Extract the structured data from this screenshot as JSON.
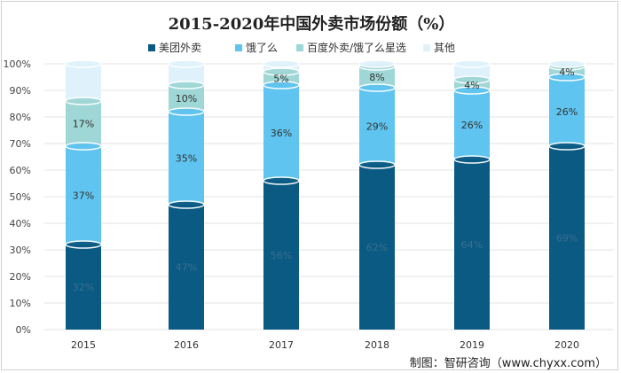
{
  "chart_data": {
    "type": "bar",
    "stacked": true,
    "title": "2015-2020年中国外卖市场份额（%）",
    "categories": [
      "2015",
      "2016",
      "2017",
      "2018",
      "2019",
      "2020"
    ],
    "series": [
      {
        "name": "美团外卖",
        "color": "#0b5a84",
        "label_color": "#3a6e8c",
        "values": [
          32,
          47,
          56,
          62,
          64,
          69
        ],
        "labels": [
          "32%",
          "47%",
          "56%",
          "62%",
          "64%",
          "69%"
        ]
      },
      {
        "name": "饿了么",
        "color": "#5fc4ef",
        "label_color": "#333333",
        "values": [
          37,
          35,
          36,
          29,
          26,
          26
        ],
        "labels": [
          "37%",
          "35%",
          "36%",
          "29%",
          "26%",
          "26%"
        ]
      },
      {
        "name": "百度外卖/饿了么星选",
        "color": "#9fd6d6",
        "label_color": "#333333",
        "values": [
          17,
          10,
          5,
          8,
          4,
          4
        ],
        "labels": [
          "17%",
          "10%",
          "5%",
          "8%",
          "4%",
          "4%"
        ]
      },
      {
        "name": "其他",
        "color": "#dff2fb",
        "label_color": "#333333",
        "values": [
          14,
          8,
          3,
          1,
          6,
          1
        ],
        "labels": []
      }
    ],
    "ylim": [
      0,
      100
    ],
    "yticks": [
      "0%",
      "10%",
      "20%",
      "30%",
      "40%",
      "50%",
      "60%",
      "70%",
      "80%",
      "90%",
      "100%"
    ],
    "grid": true,
    "legend_position": "top"
  },
  "source": "制图：智研咨询（www.chyxx.com）"
}
